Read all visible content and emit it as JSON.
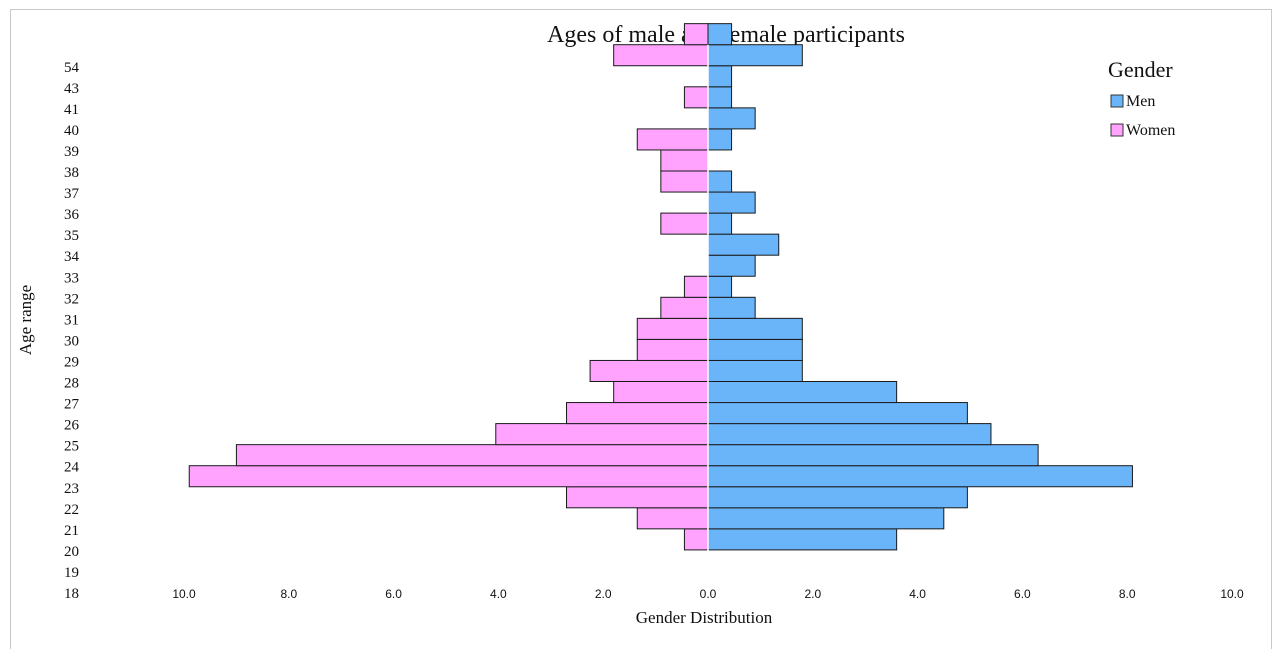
{
  "chart_data": {
    "type": "bar",
    "orientation": "horizontal-diverging",
    "title": "Ages of male and female participants",
    "xlabel": "Gender Distribution",
    "ylabel": "Age range",
    "categories": [
      "18",
      "19",
      "20",
      "21",
      "22",
      "23",
      "24",
      "25",
      "26",
      "27",
      "28",
      "29",
      "30",
      "31",
      "32",
      "33",
      "34",
      "35",
      "36",
      "37",
      "38",
      "39",
      "40",
      "41",
      "43",
      "54"
    ],
    "series": [
      {
        "name": "Men",
        "color": "#6ab4f9",
        "side": "right",
        "values": [
          0,
          3.6,
          4.5,
          4.95,
          8.1,
          6.3,
          5.4,
          4.95,
          3.6,
          1.8,
          1.8,
          1.8,
          0.9,
          0.45,
          0.9,
          1.35,
          0.45,
          0.9,
          0.45,
          0,
          0.45,
          0.9,
          0.45,
          0.45,
          1.8,
          0.45
        ]
      },
      {
        "name": "Women",
        "color": "#ffa3ff",
        "side": "left",
        "values": [
          0,
          0.45,
          1.35,
          2.7,
          9.9,
          9.0,
          4.05,
          2.7,
          1.8,
          2.25,
          1.35,
          1.35,
          0.9,
          0.45,
          0,
          0,
          0.9,
          0,
          0.9,
          0.9,
          1.35,
          0,
          0.45,
          0,
          1.8,
          0.45
        ]
      }
    ],
    "xticks": [
      "10.0",
      "8.0",
      "6.0",
      "4.0",
      "2.0",
      "0.0",
      "2.0",
      "4.0",
      "6.0",
      "8.0",
      "10.0"
    ],
    "xlim": [
      -10,
      10
    ],
    "legend": {
      "title": "Gender",
      "placement": "top-right"
    },
    "grid": false
  }
}
